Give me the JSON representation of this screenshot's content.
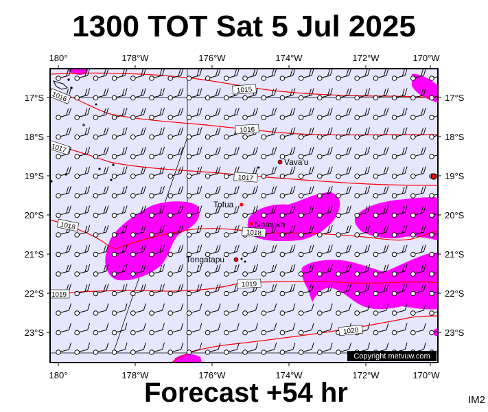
{
  "title": "1300 TOT Sat 5 Jul 2025",
  "footer": "Forecast +54 hr",
  "image_code": "IM2",
  "copyright": "Copyright metvuw.com",
  "map": {
    "lon_range": [
      180,
      170
    ],
    "lat_range": [
      -16.3,
      -23.7
    ],
    "lon_ticks": [
      "180°",
      "178°W",
      "176°W",
      "174°W",
      "172°W",
      "170°W"
    ],
    "lat_ticks": [
      "17°S",
      "18°S",
      "19°S",
      "20°S",
      "21°S",
      "22°S",
      "23°S"
    ],
    "background": "#e6e6ff",
    "precip_color": "#ff00ff",
    "isobar_color": "#ff0000",
    "places": [
      {
        "name": "Vava'u"
      },
      {
        "name": "Tofua"
      },
      {
        "name": "Nomuka"
      },
      {
        "name": "Tongatapu"
      }
    ],
    "isobar_labels": [
      "1015",
      "1016",
      "1016",
      "1017",
      "1017",
      "1018",
      "1018",
      "1019",
      "1019",
      "1020"
    ]
  }
}
